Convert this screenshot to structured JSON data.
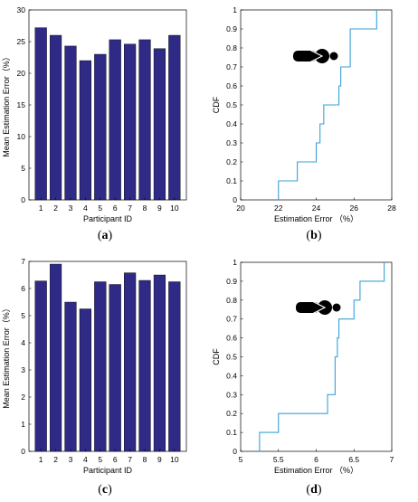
{
  "chart_data": [
    {
      "panel": "a",
      "type": "bar",
      "categories": [
        "1",
        "2",
        "3",
        "4",
        "5",
        "6",
        "7",
        "8",
        "9",
        "10"
      ],
      "values": [
        27.2,
        26.0,
        24.3,
        22.0,
        23.0,
        25.3,
        24.6,
        25.3,
        23.9,
        26.0
      ],
      "xlabel": "Participant ID",
      "ylabel": "Mean Estimation Error（%）",
      "ylim": [
        0,
        30
      ],
      "yticks": [
        0,
        5,
        10,
        15,
        20,
        25,
        30
      ],
      "color": "#2e2a86"
    },
    {
      "panel": "b",
      "type": "line",
      "step": true,
      "x": [
        22.0,
        23.0,
        24.0,
        24.2,
        24.4,
        25.2,
        25.3,
        25.8,
        27.2
      ],
      "y": [
        0.1,
        0.2,
        0.3,
        0.4,
        0.5,
        0.6,
        0.7,
        0.9,
        1.0
      ],
      "xlabel": "Estimation Error （%）",
      "ylabel": "CDF",
      "xlim": [
        20,
        28
      ],
      "ylim": [
        0,
        1
      ],
      "xticks": [
        20,
        22,
        24,
        26,
        28
      ],
      "yticks": [
        0,
        0.1,
        0.2,
        0.3,
        0.4,
        0.5,
        0.6,
        0.7,
        0.8,
        0.9,
        1
      ],
      "color": "#3aa0d8"
    },
    {
      "panel": "c",
      "type": "bar",
      "categories": [
        "1",
        "2",
        "3",
        "4",
        "5",
        "6",
        "7",
        "8",
        "9",
        "10"
      ],
      "values": [
        6.28,
        6.9,
        5.5,
        5.25,
        6.25,
        6.15,
        6.58,
        6.3,
        6.5,
        6.25
      ],
      "xlabel": "Participant ID",
      "ylabel": "Mean Estimation Error（%）",
      "ylim": [
        0,
        7
      ],
      "yticks": [
        0,
        1,
        2,
        3,
        4,
        5,
        6,
        7
      ],
      "color": "#2e2a86"
    },
    {
      "panel": "d",
      "type": "line",
      "step": true,
      "x": [
        5.25,
        5.5,
        6.15,
        6.25,
        6.28,
        6.3,
        6.5,
        6.58,
        6.9
      ],
      "y": [
        0.1,
        0.2,
        0.3,
        0.5,
        0.6,
        0.7,
        0.8,
        0.9,
        1.0
      ],
      "xlabel": "Estimation Error （%）",
      "ylabel": "CDF",
      "xlim": [
        5,
        7
      ],
      "ylim": [
        0,
        1
      ],
      "xticks": [
        5,
        5.5,
        6,
        6.5,
        7
      ],
      "yticks": [
        0,
        0.1,
        0.2,
        0.3,
        0.4,
        0.5,
        0.6,
        0.7,
        0.8,
        0.9,
        1
      ],
      "color": "#3aa0d8"
    }
  ],
  "panel_labels": {
    "a": "a",
    "b": "b",
    "c": "c",
    "d": "d"
  },
  "icons": {
    "b": "person-lying-icon",
    "d": "person-lying-icon"
  }
}
